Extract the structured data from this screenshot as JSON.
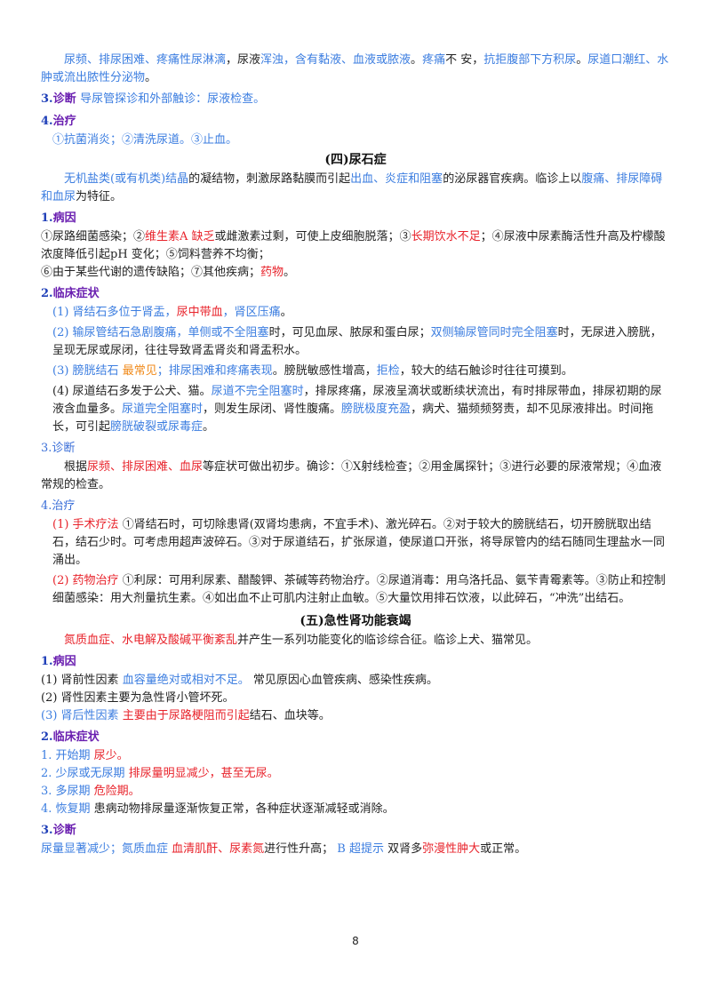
{
  "colors": {
    "blue": "#3b7de0",
    "red": "#e8232b",
    "orange": "#f08a1a",
    "purple": "#6a1fb0"
  },
  "p1": {
    "t1": "尿频、排尿困难、疼痛性尿淋漓",
    "t2": "，尿液",
    "t3": "浑浊，含有黏液、血液或脓液",
    "t4": "。",
    "t5": "疼痛",
    "t6": "不 安，",
    "t7": "抗拒腹部下方积尿",
    "t8": "。",
    "t9": "尿道口潮红、水肿或流出脓性分泌物",
    "t10": "。"
  },
  "h_diag1": {
    "num": "3.",
    "label": "诊断",
    "text": "导尿管探诊和外部触诊：尿液检查。"
  },
  "h_treat1": {
    "num": "4.",
    "label": "治疗"
  },
  "treat1_text": "①抗菌消炎；②清洗尿道。③止血。",
  "sec4_title": "(四)尿石症",
  "intro4": {
    "t1": "无机盐类(或有机类)结晶",
    "t2": "的凝结物，刺激尿路黏膜而引起",
    "t3": "出血、炎症和阻塞",
    "t4": "的泌尿器官疾病。临诊上以",
    "t5": "腹痛、排尿障碍和血尿",
    "t6": "为特征。"
  },
  "h_cause4": {
    "num": "1.",
    "label": "病因"
  },
  "cause4_a": {
    "t1": "①尿路细菌感染；②",
    "t2": "维生素A 缺乏",
    "t3": "或雌激素过剩，可使上皮细胞脱落；③",
    "t4": "长期饮水不足",
    "t5": "；④尿液中尿素酶活性升高及柠檬酸浓度降低引起pH 变化；⑤饲料营养不均衡；"
  },
  "cause4_b": {
    "t1": "⑥由于某些代谢的遗传缺陷；⑦其他疾病；",
    "t2": "药物",
    "t3": "。"
  },
  "h_sym4": {
    "num": "2.",
    "label": "临床症状"
  },
  "sym4_1": {
    "t1": "(1) 肾结石多位于肾盂，",
    "t2": "尿中带血",
    "t3": "，肾区压痛",
    "t4": "。"
  },
  "sym4_2": {
    "t1": "(2) 输尿管结石急剧腹痛，单侧或不全阻塞",
    "t2": "时，可见血尿、脓尿和蛋白尿；",
    "t3": "双侧输尿管同时完全阻塞",
    "t4": "时，无尿进入膀胱，呈现无尿或尿闭，往往导致肾盂肾炎和肾盂积水。"
  },
  "sym4_3": {
    "t1": "(3) 膀胱结石",
    "t2": "最常见",
    "t3": "；排尿困难和疼痛表现",
    "t4": "。膀胱敏感性增高，",
    "t5": "拒检",
    "t6": "，较大的结石触诊时往往可摸到。"
  },
  "sym4_4": {
    "t1": "(4) 尿道结石多发于公犬、猫。",
    "t2": "尿道不完全阻塞时",
    "t3": "，排尿疼痛，尿液呈滴状或断续状流出，有时排尿带血，排尿初期的尿液含血量多。",
    "t4": "尿道完全阻塞时",
    "t5": "，则发生尿闭、肾性腹痛。",
    "t6": "膀胱极度充盈",
    "t7": "，病犬、猫频频努责，却不见尿液排出。时间拖长，可引起",
    "t8": "膀胱破裂或尿毒症",
    "t9": "。"
  },
  "h_diag4": {
    "num": "3.",
    "label": "诊断"
  },
  "diag4": {
    "t1": "根据",
    "t2": "尿频、排尿困难、血尿",
    "t3": "等症状可做出初步。确诊：①X射线检查；②用金属探针；③进行必要的尿液常规；④血液常规的检查。"
  },
  "h_treat4": {
    "num": "4.",
    "label": "治疗"
  },
  "treat4_1": {
    "t1": "(1) 手术疗法",
    "t2": " ①肾结石时，可切除患肾(双肾均患病，不宜手术)、激光碎石。②对于较大的膀胱结石，切开膀胱取出结石，结石少时。可考虑用超声波碎石。③对于尿道结石，扩张尿道，使尿道口开张，将导尿管内的结石随同生理盐水一同涌出。"
  },
  "treat4_2": {
    "t1": "(2) 药物治疗",
    "t2": " ①利尿：可用利尿素、醋酸钾、茶碱等药物治疗。②尿道消毒：用乌洛托品、氨苄青霉素等。③防止和控制细菌感染：用大剂量抗生素。④如出血不止可肌内注射止血敏。⑤大量饮用排石饮液，以此碎石，“冲洗”出结石。"
  },
  "sec5_title": "(五)急性肾功能衰竭",
  "intro5": {
    "t1": "氮质血症、水电解及酸碱平衡紊乱",
    "t2": "并产生一系列功能变化的临诊综合征。临诊上犬、猫常见。"
  },
  "h_cause5": {
    "num": "1.",
    "label": "病因"
  },
  "cause5_1": {
    "t1": "(1) 肾前性因素 ",
    "t2": "血容量绝对或相对不足。",
    "t3": " 常见原因心血管疾病、感染性疾病。"
  },
  "cause5_2": "(2) 肾性因素主要为急性肾小管坏死。",
  "cause5_3": {
    "t1": "(3) 肾后性因素 ",
    "t2": "主要由于尿路梗阻而引起",
    "t3": "结石、血块等。"
  },
  "h_sym5": {
    "num": "2.",
    "label": "临床症状"
  },
  "sym5_1": {
    "t1": "1. 开始期 ",
    "t2": "尿少。"
  },
  "sym5_2": {
    "t1": "2. 少尿或无尿期 ",
    "t2": "排尿量明显减少，甚至无尿。"
  },
  "sym5_3": {
    "t1": "3. 多尿期 ",
    "t2": "危险期。"
  },
  "sym5_4": {
    "t1": "4. 恢复期 ",
    "t2": "患病动物排尿量逐渐恢复正常，各种症状逐渐减轻或消除。"
  },
  "h_diag5": {
    "num": "3.",
    "label": "诊断"
  },
  "diag5": {
    "t1": "尿量显著减少；氮质血症 ",
    "t2": "血清肌酐、尿素氮",
    "t3": "进行性升高； ",
    "t4": "B 超提示",
    "t5": " 双肾多",
    "t6": "弥漫性肿大",
    "t7": "或正常。"
  },
  "page_number": "8"
}
